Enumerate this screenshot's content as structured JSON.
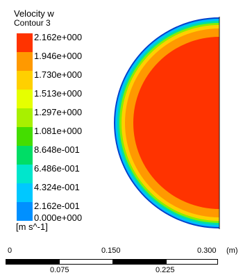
{
  "legend": {
    "title": "Velocity w",
    "subtitle": "Contour 3",
    "units": "[m s^-1]",
    "levels": [
      {
        "label": "2.162e+000",
        "color": "#ff3300"
      },
      {
        "label": "1.946e+000",
        "color": "#ff9900"
      },
      {
        "label": "1.730e+000",
        "color": "#ffd000"
      },
      {
        "label": "1.513e+000",
        "color": "#e6ff00"
      },
      {
        "label": "1.297e+000",
        "color": "#a8f000"
      },
      {
        "label": "1.081e+000",
        "color": "#44dd00"
      },
      {
        "label": "8.648e-001",
        "color": "#00dd66"
      },
      {
        "label": "6.486e-001",
        "color": "#00e6cc"
      },
      {
        "label": "4.324e-001",
        "color": "#00c8ff"
      },
      {
        "label": "2.162e-001",
        "color": "#0090ff"
      },
      {
        "label": "0.000e+000",
        "color": "#0033ff"
      }
    ]
  },
  "contour_rings": [
    "#003fcc",
    "#00bfff",
    "#00e0a0",
    "#88ee00",
    "#ffd000",
    "#ff9900",
    "#ff3300"
  ],
  "scale": {
    "top_labels": [
      "0",
      "0.150",
      "0.300"
    ],
    "unit": "(m)",
    "bottom_labels": [
      "0.075",
      "0.225"
    ]
  }
}
